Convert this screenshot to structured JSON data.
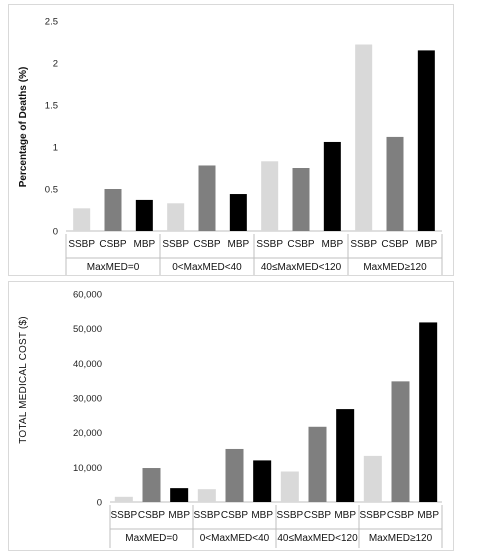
{
  "chart_data": [
    {
      "type": "bar",
      "ylabel": "Percentage of Deaths (%)",
      "ylim": [
        0,
        2.5
      ],
      "yticks": [
        "0",
        "0.5",
        "1",
        "1.5",
        "2",
        "2.5"
      ],
      "yticks_values": [
        0,
        0.5,
        1,
        1.5,
        2,
        2.5
      ],
      "grid": false,
      "groups": [
        "MaxMED=0",
        "0<MaxMED<40",
        "40≤MaxMED<120",
        "MaxMED≥120"
      ],
      "categories": [
        "SSBP",
        "CSBP",
        "MBP"
      ],
      "colors": [
        "#d9d9d9",
        "#7f7f7f",
        "#000000"
      ],
      "values": [
        [
          0.27,
          0.5,
          0.37
        ],
        [
          0.33,
          0.78,
          0.44
        ],
        [
          0.83,
          0.75,
          1.06
        ],
        [
          2.22,
          1.12,
          2.15
        ]
      ]
    },
    {
      "type": "bar",
      "ylabel": "TOTAL MEDICAL COST ($)",
      "ylim": [
        0,
        60000
      ],
      "yticks": [
        "0",
        "10,000",
        "20,000",
        "30,000",
        "40,000",
        "50,000",
        "60,000"
      ],
      "yticks_values": [
        0,
        10000,
        20000,
        30000,
        40000,
        50000,
        60000
      ],
      "grid": false,
      "groups": [
        "MaxMED=0",
        "0<MaxMED<40",
        "40≤MaxMED<120",
        "MaxMED≥120"
      ],
      "categories": [
        "SSBP",
        "CSBP",
        "MBP"
      ],
      "colors": [
        "#d9d9d9",
        "#7f7f7f",
        "#000000"
      ],
      "values": [
        [
          1500,
          9800,
          4000
        ],
        [
          3700,
          15300,
          12000
        ],
        [
          8800,
          21700,
          26800
        ],
        [
          13300,
          34800,
          51800
        ]
      ]
    }
  ]
}
